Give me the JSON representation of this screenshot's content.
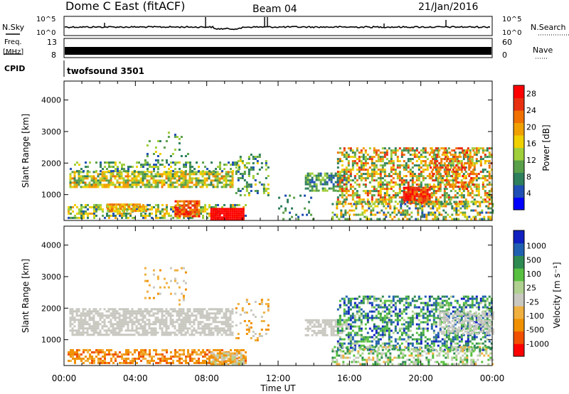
{
  "header": {
    "title": "Dome C East (fitACF)",
    "beam": "Beam 04",
    "date": "21/Jan/2016"
  },
  "sky_panel": {
    "left_label": "N.Sky",
    "right_label": "N.Search",
    "y_ticks_left": [
      "10^5",
      "10^0"
    ],
    "y_ticks_right": [
      "10^5",
      "10^0"
    ]
  },
  "freq_panel": {
    "left_label_1": "Freq.",
    "left_label_2": "[MHz]",
    "right_label": "Nave",
    "y_ticks_left": [
      "13",
      "8"
    ],
    "y_ticks_right": [
      "60",
      "0"
    ]
  },
  "cpid": {
    "label": "CPID",
    "value": "twofsound 3501"
  },
  "colors": {
    "power_scale": [
      "#0000ff",
      "#1f4fb4",
      "#2e7f5c",
      "#5aa04a",
      "#9fcf3a",
      "#f0d000",
      "#f0a000",
      "#f07000",
      "#e83010",
      "#ff0000"
    ],
    "velocity_scale": [
      "#ff0000",
      "#f05000",
      "#f09000",
      "#f0b040",
      "#c8c8c0",
      "#b0d090",
      "#58c040",
      "#2e8a50",
      "#2060b0",
      "#1020c0"
    ]
  },
  "chart_data": [
    {
      "type": "heatmap",
      "name": "power",
      "ylabel": "Slant Range [km]",
      "xlabel": "Time UT",
      "x_ticks": [
        "00:00",
        "04:00",
        "08:00",
        "12:00",
        "16:00",
        "20:00",
        "00:00"
      ],
      "y_ticks": [
        "1000",
        "2000",
        "3000",
        "4000"
      ],
      "xlim_hours": [
        0,
        24
      ],
      "ylim_km": [
        180,
        4600
      ],
      "colorbar": {
        "label": "Power [dB]",
        "ticks": [
          "4",
          "8",
          "12",
          "16",
          "20",
          "24",
          "28"
        ],
        "range": [
          0,
          30
        ]
      },
      "regions": [
        {
          "t0": 0.3,
          "t1": 9.5,
          "r0": 1250,
          "r1": 1750,
          "dense": 0.75,
          "lvl": [
            8,
            22
          ]
        },
        {
          "t0": 0.2,
          "t1": 9.8,
          "r0": 1750,
          "r1": 2050,
          "dense": 0.35,
          "lvl": [
            4,
            16
          ]
        },
        {
          "t0": 0.2,
          "t1": 10.2,
          "r0": 250,
          "r1": 700,
          "dense": 0.55,
          "lvl": [
            4,
            20
          ]
        },
        {
          "t0": 8.2,
          "t1": 10.0,
          "r0": 230,
          "r1": 580,
          "dense": 0.98,
          "lvl": [
            27,
            30
          ]
        },
        {
          "t0": 6.2,
          "t1": 7.6,
          "r0": 330,
          "r1": 820,
          "dense": 0.85,
          "lvl": [
            20,
            28
          ]
        },
        {
          "t0": 2.4,
          "t1": 4.6,
          "r0": 450,
          "r1": 720,
          "dense": 0.75,
          "lvl": [
            14,
            24
          ]
        },
        {
          "t0": 4.5,
          "t1": 7.0,
          "r0": 2100,
          "r1": 3000,
          "dense": 0.12,
          "lvl": [
            4,
            16
          ]
        },
        {
          "t0": 9.6,
          "t1": 11.5,
          "r0": 1000,
          "r1": 2300,
          "dense": 0.25,
          "lvl": [
            4,
            16
          ]
        },
        {
          "t0": 13.5,
          "t1": 16.0,
          "r0": 1150,
          "r1": 1700,
          "dense": 0.6,
          "lvl": [
            4,
            14
          ]
        },
        {
          "t0": 12.0,
          "t1": 14.0,
          "r0": 230,
          "r1": 1000,
          "dense": 0.15,
          "lvl": [
            4,
            12
          ]
        },
        {
          "t0": 15.3,
          "t1": 24.0,
          "r0": 700,
          "r1": 2500,
          "dense": 0.55,
          "lvl": [
            6,
            26
          ]
        },
        {
          "t0": 19.0,
          "t1": 20.5,
          "r0": 750,
          "r1": 1250,
          "dense": 0.9,
          "lvl": [
            22,
            30
          ]
        },
        {
          "t0": 15.0,
          "t1": 24.0,
          "r0": 230,
          "r1": 800,
          "dense": 0.45,
          "lvl": [
            4,
            22
          ]
        },
        {
          "t0": 20.5,
          "t1": 23.0,
          "r0": 1200,
          "r1": 2500,
          "dense": 0.35,
          "lvl": [
            18,
            28
          ]
        }
      ]
    },
    {
      "type": "heatmap",
      "name": "velocity",
      "ylabel": "Slant Range [km]",
      "xlabel": "Time UT",
      "x_ticks": [
        "00:00",
        "04:00",
        "08:00",
        "12:00",
        "16:00",
        "20:00",
        "00:00"
      ],
      "y_ticks": [
        "1000",
        "2000",
        "3000",
        "4000"
      ],
      "xlim_hours": [
        0,
        24
      ],
      "ylim_km": [
        180,
        4600
      ],
      "colorbar": {
        "label": "Velocity [m s⁻¹]",
        "ticks": [
          "1000",
          "500",
          "100",
          "25",
          "-25",
          "-100",
          "-500",
          "-1000"
        ]
      },
      "regions": [
        {
          "t0": 0.3,
          "t1": 9.5,
          "r0": 1150,
          "r1": 2000,
          "dense": 0.7,
          "lvl": [
            4,
            4
          ]
        },
        {
          "t0": 0.2,
          "t1": 10.2,
          "r0": 250,
          "r1": 700,
          "dense": 0.6,
          "lvl": [
            1,
            3
          ]
        },
        {
          "t0": 8.2,
          "t1": 10.0,
          "r0": 230,
          "r1": 600,
          "dense": 0.9,
          "lvl": [
            2,
            5
          ]
        },
        {
          "t0": 4.5,
          "t1": 7.0,
          "r0": 2100,
          "r1": 3300,
          "dense": 0.12,
          "lvl": [
            2,
            4
          ]
        },
        {
          "t0": 9.6,
          "t1": 11.5,
          "r0": 1000,
          "r1": 2300,
          "dense": 0.2,
          "lvl": [
            2,
            4
          ]
        },
        {
          "t0": 13.5,
          "t1": 16.0,
          "r0": 1150,
          "r1": 1650,
          "dense": 0.6,
          "lvl": [
            4,
            4
          ]
        },
        {
          "t0": 15.3,
          "t1": 24.0,
          "r0": 700,
          "r1": 2400,
          "dense": 0.5,
          "lvl": [
            5,
            9
          ]
        },
        {
          "t0": 15.0,
          "t1": 24.0,
          "r0": 230,
          "r1": 800,
          "dense": 0.4,
          "lvl": [
            3,
            7
          ]
        },
        {
          "t0": 21.0,
          "t1": 24.0,
          "r0": 1200,
          "r1": 1900,
          "dense": 0.5,
          "lvl": [
            4,
            4
          ]
        }
      ]
    }
  ]
}
